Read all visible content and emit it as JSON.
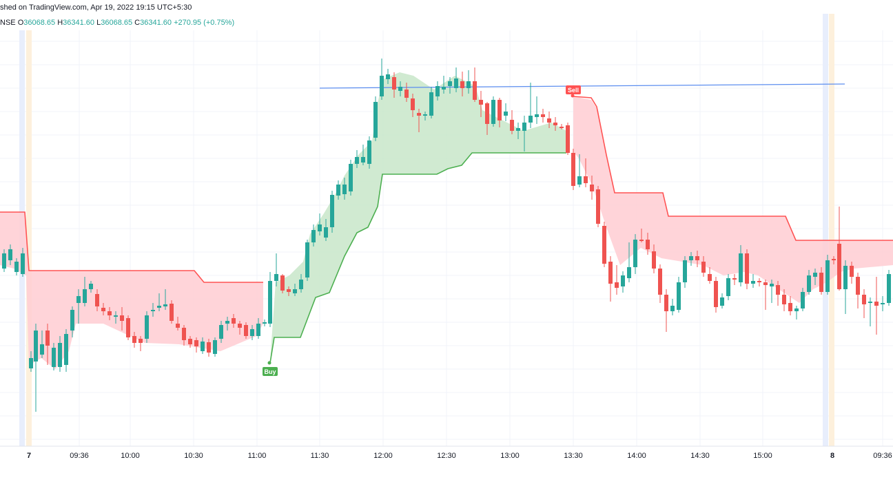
{
  "header": {
    "published": "shed on TradingView.com, Apr 19, 2022 19:15 UTC+5:30",
    "symbol_fragment": "NSE",
    "ohlc": [
      {
        "label": "O",
        "value": "36068.65"
      },
      {
        "label": "H",
        "value": "36341.60"
      },
      {
        "label": "L",
        "value": "36068.65"
      },
      {
        "label": "C",
        "value": "36341.60"
      }
    ],
    "change": "+270.95 (+0.75%)"
  },
  "colors": {
    "up": "#26a69a",
    "down": "#ef5350",
    "band_up": "#4caf50",
    "band_down": "#ff5252",
    "fill_up": "#c8e6c9",
    "fill_down": "#ffcdd2",
    "trendline": "#5b8def"
  },
  "chart_data": {
    "type": "candlestick",
    "title": "",
    "x_ticks": [
      {
        "label": "7",
        "bold": true
      },
      {
        "label": "09:36",
        "bold": false
      },
      {
        "label": "10:00",
        "bold": false
      },
      {
        "label": "10:30",
        "bold": false
      },
      {
        "label": "11:00",
        "bold": false
      },
      {
        "label": "11:30",
        "bold": false
      },
      {
        "label": "12:00",
        "bold": false
      },
      {
        "label": "12:30",
        "bold": false
      },
      {
        "label": "13:00",
        "bold": false
      },
      {
        "label": "13:30",
        "bold": false
      },
      {
        "label": "14:00",
        "bold": false
      },
      {
        "label": "14:30",
        "bold": false
      },
      {
        "label": "15:00",
        "bold": false
      },
      {
        "label": "8",
        "bold": true
      },
      {
        "label": "09:36",
        "bold": false
      }
    ],
    "grid": true,
    "signals": [
      {
        "label": "Buy",
        "type": "buy"
      },
      {
        "label": "Sell",
        "type": "sell"
      }
    ]
  }
}
